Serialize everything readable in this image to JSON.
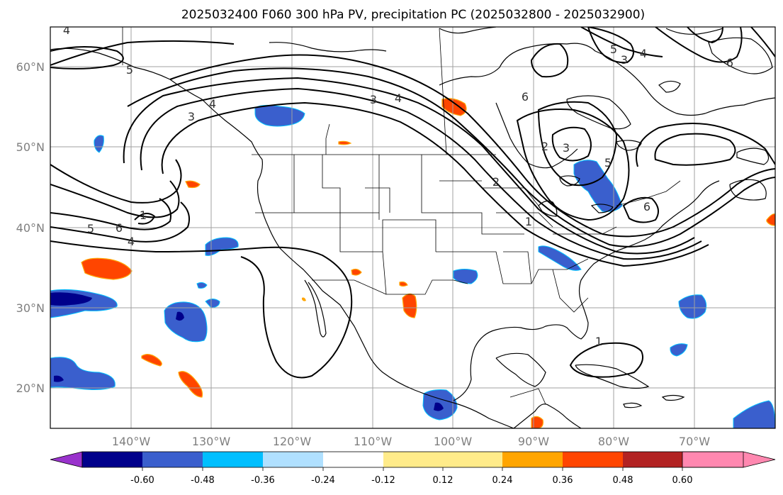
{
  "title": "2025032400 F060 300 hPa PV, precipitation PC (2025032800 - 2025032900)",
  "lat_labels": [
    "60°N",
    "50°N",
    "40°N",
    "30°N",
    "20°N"
  ],
  "lon_labels": [
    "140°W",
    "130°W",
    "120°W",
    "110°W",
    "100°W",
    "90°W",
    "80°W",
    "70°W"
  ],
  "colorbar": {
    "tick_labels": [
      "-0.60",
      "-0.48",
      "-0.36",
      "-0.24",
      "-0.12",
      "0.12",
      "0.24",
      "0.36",
      "0.48",
      "0.60"
    ],
    "colors": [
      "#9932cc",
      "#00008b",
      "#3a5fcd",
      "#00bfff",
      "#b0e0ff",
      "#ffffff",
      "#ffeb8a",
      "#ffa500",
      "#ff4500",
      "#b22222",
      "#ff88b0"
    ]
  },
  "pv_contour_labels": [
    "4",
    "5",
    "3",
    "4",
    "5",
    "6",
    "4",
    "3",
    "4",
    "6",
    "3",
    "2",
    "1",
    "1",
    "5",
    "6",
    "4",
    "3",
    "2",
    "5",
    "6",
    "1"
  ],
  "map": {
    "projection": "cylindrical lat/lon",
    "lon_range": [
      -150,
      -60
    ],
    "lat_range": [
      15,
      65
    ]
  }
}
